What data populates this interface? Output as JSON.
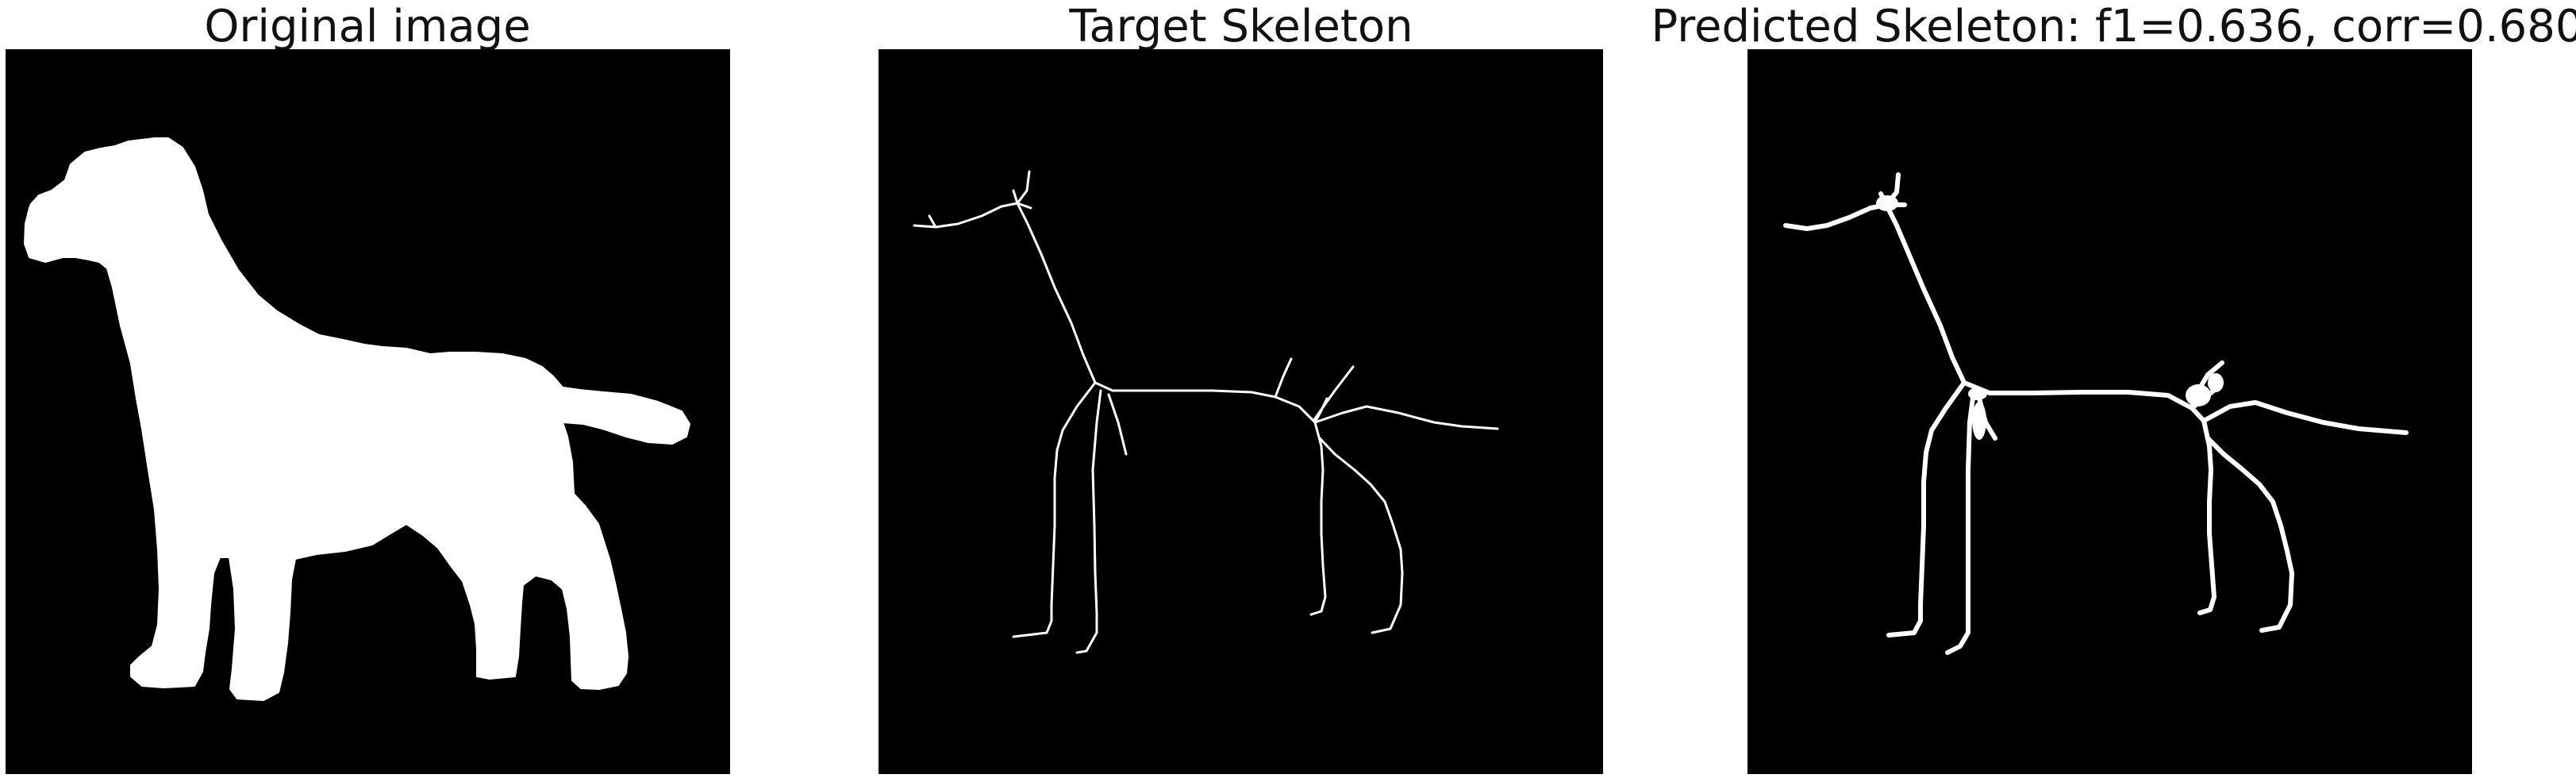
{
  "panels": [
    {
      "title": "Original image",
      "content": "original-image"
    },
    {
      "title": "Target Skeleton",
      "content": "target-skeleton"
    },
    {
      "title": "Predicted Skeleton: f1=0.636, corr=0.680",
      "content": "predicted-skeleton"
    }
  ],
  "colors": {
    "background": "#000000",
    "foreground": "#ffffff",
    "page": "#ffffff",
    "title_text": "#111111"
  }
}
